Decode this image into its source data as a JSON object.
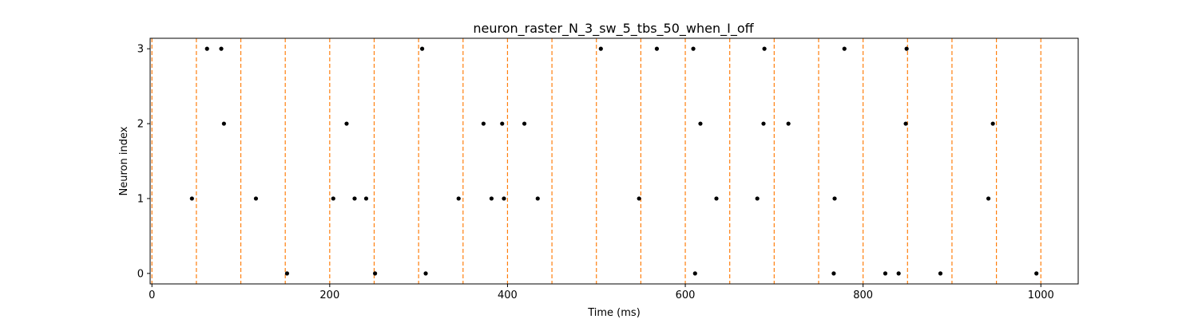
{
  "chart_data": {
    "type": "scatter",
    "title": "neuron_raster_N_3_sw_5_tbs_50_when_I_off",
    "xlabel": "Time (ms)",
    "ylabel": "Neuron index",
    "xlim": [
      -2,
      1042
    ],
    "ylim": [
      -0.14,
      3.14
    ],
    "xticks": [
      0,
      200,
      400,
      600,
      800,
      1000
    ],
    "yticks": [
      0,
      1,
      2,
      3
    ],
    "grid": false,
    "marker_color": "#000000",
    "vline_color": "#ff7f0e",
    "vlines": [
      0,
      50,
      100,
      150,
      200,
      250,
      300,
      350,
      400,
      450,
      500,
      550,
      600,
      650,
      700,
      750,
      800,
      850,
      900,
      950,
      1000
    ],
    "spikes": [
      {
        "neuron": 0,
        "times": [
          152,
          251,
          308,
          611,
          767,
          825,
          840,
          887,
          995
        ]
      },
      {
        "neuron": 1,
        "times": [
          45,
          117,
          204,
          228,
          241,
          345,
          382,
          396,
          434,
          548,
          635,
          681,
          768,
          941
        ]
      },
      {
        "neuron": 2,
        "times": [
          81,
          219,
          373,
          394,
          419,
          617,
          688,
          716,
          848,
          946
        ]
      },
      {
        "neuron": 3,
        "times": [
          62,
          78,
          304,
          505,
          568,
          609,
          689,
          779,
          849
        ]
      }
    ]
  }
}
